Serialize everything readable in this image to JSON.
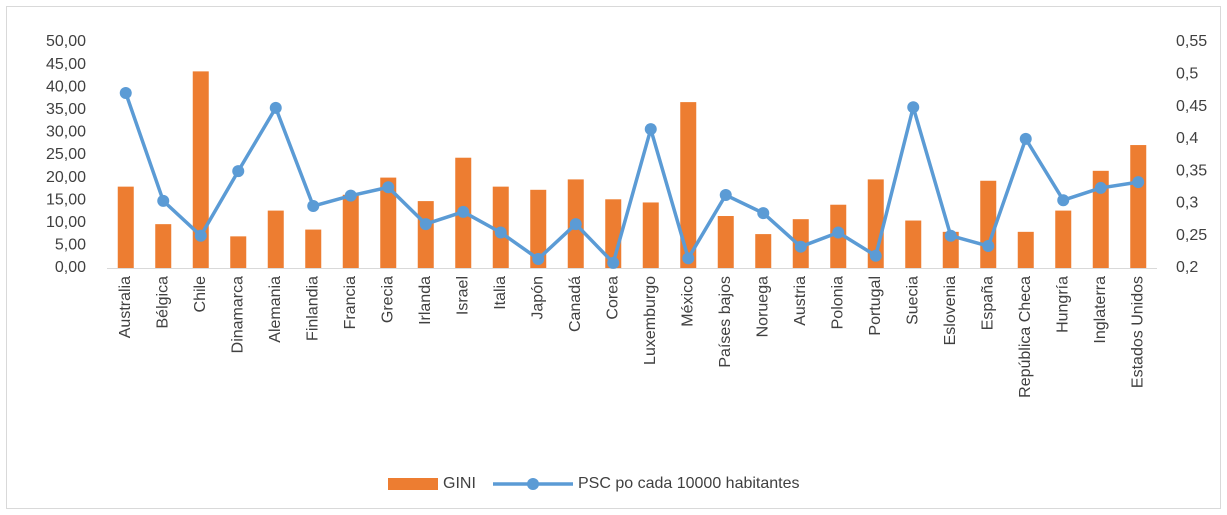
{
  "chart_data": {
    "type": "bar-line",
    "categories": [
      "Australia",
      "Bélgica",
      "Chile",
      "Dinamarca",
      "Alemania",
      "Finlandia",
      "Francia",
      "Grecia",
      "Irlanda",
      "Israel",
      "Italia",
      "Japón",
      "Canadá",
      "Corea",
      "Luxemburgo",
      "México",
      "Países bajos",
      "Noruega",
      "Austria",
      "Polonia",
      "Portugal",
      "Suecia",
      "Eslovenia",
      "España",
      "República Checa",
      "Hungría",
      "Inglaterra",
      "Estados Unidos"
    ],
    "series": [
      {
        "name": "GINI",
        "type": "bar",
        "color": "#ed7d31",
        "values": [
          18,
          9.7,
          43.5,
          7,
          12.7,
          8.5,
          16.2,
          20,
          14.8,
          24.4,
          18,
          17.3,
          19.6,
          15.2,
          14.5,
          36.7,
          11.5,
          7.5,
          10.8,
          14,
          19.6,
          10.5,
          8,
          19.3,
          8,
          12.7,
          21.5,
          27.2
        ]
      },
      {
        "name": "PSC po cada 10000 habitantes",
        "type": "line",
        "axis": "y2",
        "color": "#5b9bd5",
        "values": [
          0.471,
          0.304,
          0.25,
          0.35,
          0.448,
          0.296,
          0.312,
          0.325,
          0.268,
          0.287,
          0.255,
          0.214,
          0.268,
          0.208,
          0.415,
          0.215,
          0.313,
          0.285,
          0.233,
          0.255,
          0.219,
          0.449,
          0.25,
          0.234,
          0.4,
          0.305,
          0.324,
          0.333
        ]
      }
    ],
    "ylim": [
      0,
      50
    ],
    "yticks": [
      {
        "value": 0,
        "label": "0,00"
      },
      {
        "value": 5,
        "label": "5,00"
      },
      {
        "value": 10,
        "label": "10,00"
      },
      {
        "value": 15,
        "label": "15,00"
      },
      {
        "value": 20,
        "label": "20,00"
      },
      {
        "value": 25,
        "label": "25,00"
      },
      {
        "value": 30,
        "label": "30,00"
      },
      {
        "value": 35,
        "label": "35,00"
      },
      {
        "value": 40,
        "label": "40,00"
      },
      {
        "value": 45,
        "label": "45,00"
      },
      {
        "value": 50,
        "label": "50,00"
      }
    ],
    "y2lim": [
      0.2,
      0.55
    ],
    "y2ticks": [
      {
        "value": 0.2,
        "label": "0,2"
      },
      {
        "value": 0.25,
        "label": "0,25"
      },
      {
        "value": 0.3,
        "label": "0,3"
      },
      {
        "value": 0.35,
        "label": "0,35"
      },
      {
        "value": 0.4,
        "label": "0,4"
      },
      {
        "value": 0.45,
        "label": "0,45"
      },
      {
        "value": 0.5,
        "label": "0,5"
      },
      {
        "value": 0.55,
        "label": "0,55"
      }
    ],
    "grid": false,
    "legend": "bottom"
  }
}
